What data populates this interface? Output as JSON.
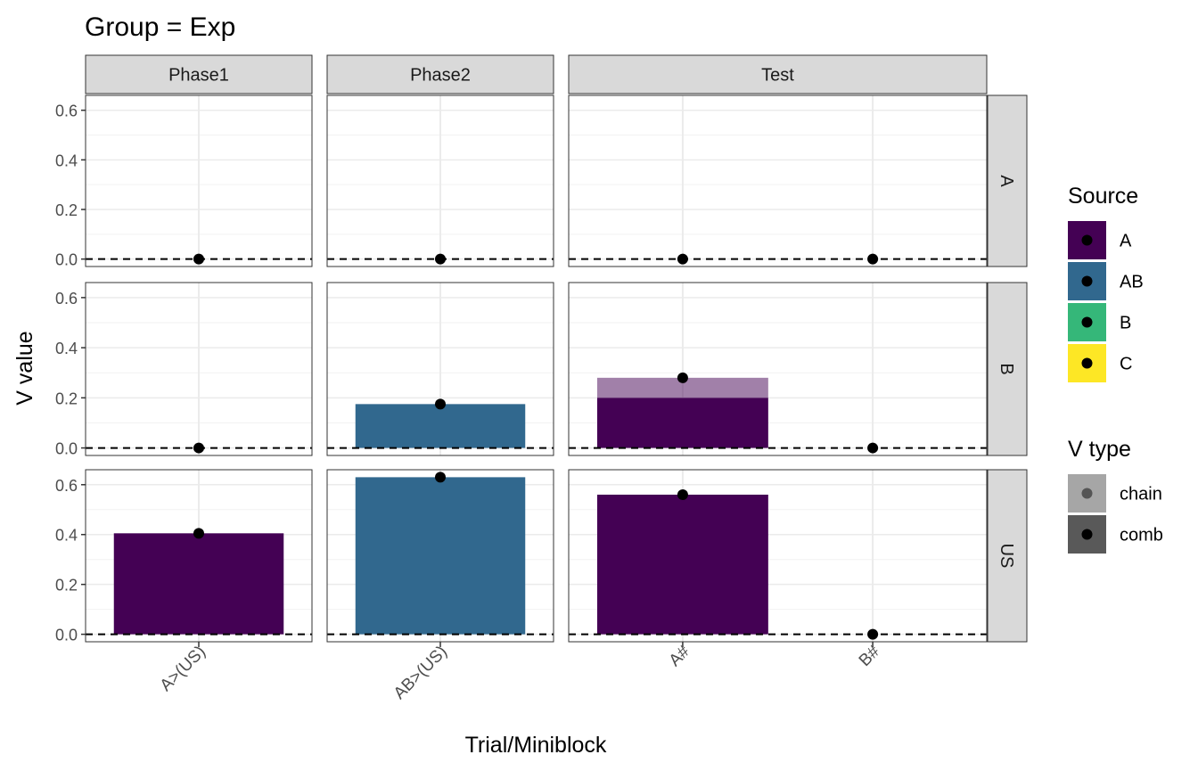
{
  "chart_data": {
    "type": "bar",
    "title": "Group = Exp",
    "xlabel": "Trial/Miniblock",
    "ylabel": "V value",
    "ylim": [
      -0.03,
      0.66
    ],
    "yticks": [
      0.0,
      0.2,
      0.4,
      0.6
    ],
    "yticklabels": [
      "0.0",
      "0.2",
      "0.4",
      "0.6"
    ],
    "grid": true,
    "legend_position": "right",
    "col_facets": [
      {
        "label": "Phase1",
        "categories": [
          "A>(US)"
        ]
      },
      {
        "label": "Phase2",
        "categories": [
          "AB>(US)"
        ]
      },
      {
        "label": "Test",
        "categories": [
          "A#",
          "B#"
        ]
      }
    ],
    "row_facets": [
      "A",
      "B",
      "US"
    ],
    "source_legend": {
      "title": "Source",
      "items": [
        {
          "name": "A",
          "color": "#440154"
        },
        {
          "name": "AB",
          "color": "#31688E"
        },
        {
          "name": "B",
          "color": "#35B779"
        },
        {
          "name": "C",
          "color": "#FDE725"
        }
      ]
    },
    "vtype_legend": {
      "title": "V type",
      "items": [
        {
          "name": "chain",
          "color": "#A6A6A6",
          "point_color": "#555555"
        },
        {
          "name": "comb",
          "color": "#595959",
          "point_color": "#000000"
        }
      ]
    },
    "bars": [
      {
        "row": "B",
        "col": "Phase2",
        "category": "AB>(US)",
        "source": "AB",
        "vtype": "comb",
        "ymin": 0.0,
        "ymax": 0.175
      },
      {
        "row": "B",
        "col": "Test",
        "category": "A#",
        "source": "A",
        "vtype": "comb",
        "ymin": 0.0,
        "ymax": 0.2
      },
      {
        "row": "B",
        "col": "Test",
        "category": "A#",
        "source": "A",
        "vtype": "chain",
        "ymin": 0.2,
        "ymax": 0.28
      },
      {
        "row": "US",
        "col": "Phase1",
        "category": "A>(US)",
        "source": "A",
        "vtype": "comb",
        "ymin": 0.0,
        "ymax": 0.405
      },
      {
        "row": "US",
        "col": "Phase2",
        "category": "AB>(US)",
        "source": "AB",
        "vtype": "comb",
        "ymin": 0.0,
        "ymax": 0.63
      },
      {
        "row": "US",
        "col": "Test",
        "category": "A#",
        "source": "A",
        "vtype": "comb",
        "ymin": 0.0,
        "ymax": 0.56
      }
    ],
    "points": [
      {
        "row": "A",
        "col": "Phase1",
        "category": "A>(US)",
        "y": 0.0
      },
      {
        "row": "A",
        "col": "Phase2",
        "category": "AB>(US)",
        "y": 0.0
      },
      {
        "row": "A",
        "col": "Test",
        "category": "A#",
        "y": 0.0
      },
      {
        "row": "A",
        "col": "Test",
        "category": "B#",
        "y": 0.0
      },
      {
        "row": "B",
        "col": "Phase1",
        "category": "A>(US)",
        "y": 0.0
      },
      {
        "row": "B",
        "col": "Phase2",
        "category": "AB>(US)",
        "y": 0.175
      },
      {
        "row": "B",
        "col": "Test",
        "category": "A#",
        "y": 0.28
      },
      {
        "row": "B",
        "col": "Test",
        "category": "B#",
        "y": 0.0
      },
      {
        "row": "US",
        "col": "Phase1",
        "category": "A>(US)",
        "y": 0.405
      },
      {
        "row": "US",
        "col": "Phase2",
        "category": "AB>(US)",
        "y": 0.63
      },
      {
        "row": "US",
        "col": "Test",
        "category": "A#",
        "y": 0.56
      },
      {
        "row": "US",
        "col": "Test",
        "category": "B#",
        "y": 0.0
      }
    ],
    "reference_line": {
      "y": 0.0,
      "style": "dashed"
    }
  }
}
